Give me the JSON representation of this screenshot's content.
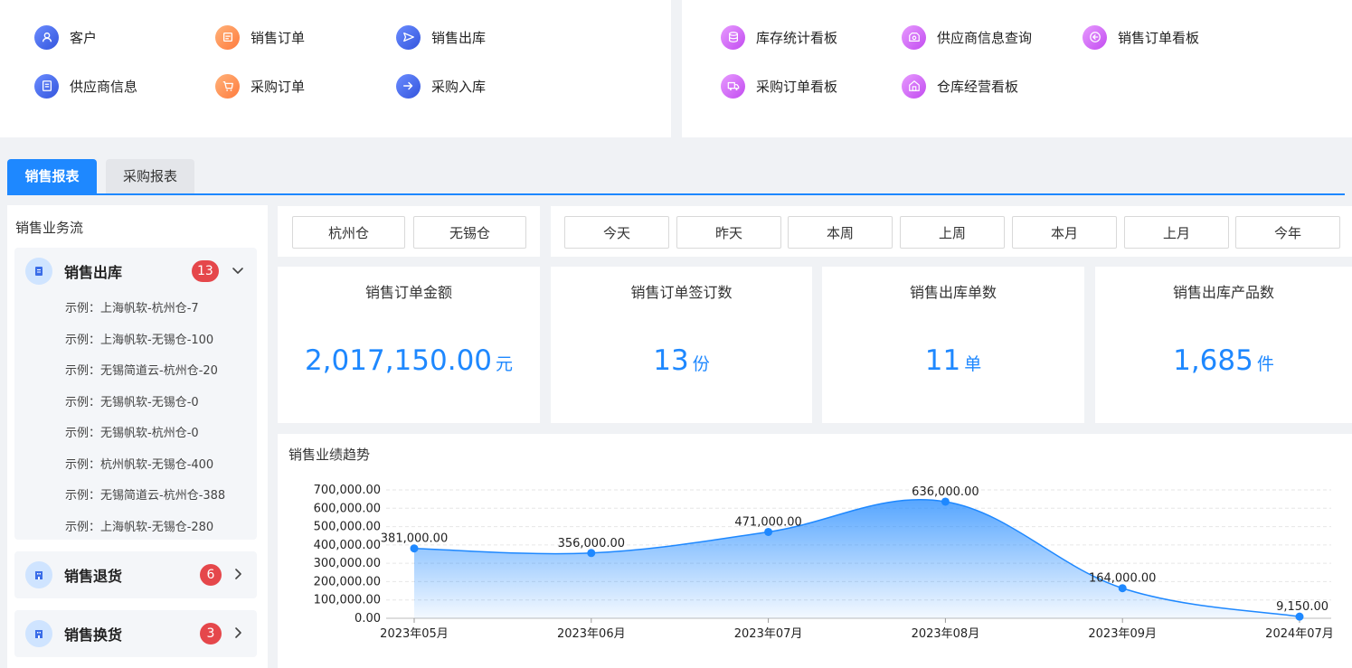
{
  "quick_left": [
    {
      "label": "客户",
      "icon": "customer-icon",
      "color": "blue"
    },
    {
      "label": "销售订单",
      "icon": "sales-order-icon",
      "color": "orange"
    },
    {
      "label": "销售出库",
      "icon": "send-icon",
      "color": "blue"
    },
    {
      "label": "供应商信息",
      "icon": "supplier-icon",
      "color": "blue"
    },
    {
      "label": "采购订单",
      "icon": "cart-icon",
      "color": "orange"
    },
    {
      "label": "采购入库",
      "icon": "arrow-in-icon",
      "color": "blue"
    }
  ],
  "quick_right": [
    {
      "label": "库存统计看板",
      "icon": "database-icon",
      "color": "purple"
    },
    {
      "label": "供应商信息查询",
      "icon": "supplier-search-icon",
      "color": "purple"
    },
    {
      "label": "销售订单看板",
      "icon": "arrow-back-icon",
      "color": "purple"
    },
    {
      "label": "采购订单看板",
      "icon": "truck-icon",
      "color": "purple"
    },
    {
      "label": "仓库经营看板",
      "icon": "warehouse-icon",
      "color": "purple"
    }
  ],
  "tabs": [
    {
      "label": "销售报表",
      "active": true
    },
    {
      "label": "采购报表",
      "active": false
    }
  ],
  "workflow": {
    "title": "销售业务流",
    "groups": [
      {
        "label": "销售出库",
        "badge": "13",
        "expanded": true,
        "items": [
          "示例：上海帆软-杭州仓-7",
          "示例：上海帆软-无锡仓-100",
          "示例：无锡简道云-杭州仓-20",
          "示例：无锡帆软-无锡仓-0",
          "示例：无锡帆软-杭州仓-0",
          "示例：杭州帆软-无锡仓-400",
          "示例：无锡简道云-杭州仓-388",
          "示例：上海帆软-无锡仓-280"
        ]
      },
      {
        "label": "销售退货",
        "badge": "6",
        "expanded": false,
        "items": []
      },
      {
        "label": "销售换货",
        "badge": "3",
        "expanded": false,
        "items": []
      }
    ]
  },
  "warehouses": [
    "杭州仓",
    "无锡仓"
  ],
  "periods": [
    "今天",
    "昨天",
    "本周",
    "上周",
    "本月",
    "上月",
    "今年"
  ],
  "kpis": [
    {
      "title": "销售订单金额",
      "value": "2,017,150.00",
      "unit": "元"
    },
    {
      "title": "销售订单签订数",
      "value": "13",
      "unit": "份"
    },
    {
      "title": "销售出库单数",
      "value": "11",
      "unit": "单"
    },
    {
      "title": "销售出库产品数",
      "value": "1,685",
      "unit": "件"
    }
  ],
  "chart_title": "销售业绩趋势",
  "colors": {
    "accent": "#1e88ff",
    "badge": "#e5474b"
  },
  "chart_data": {
    "type": "area",
    "title": "销售业绩趋势",
    "categories": [
      "2023年05月",
      "2023年06月",
      "2023年07月",
      "2023年08月",
      "2023年09月",
      "2024年07月"
    ],
    "values": [
      381000,
      356000,
      471000,
      636000,
      164000,
      9150
    ],
    "value_labels": [
      "381,000.00",
      "356,000.00",
      "471,000.00",
      "636,000.00",
      "164,000.00",
      "9,150.00"
    ],
    "yticks": [
      "0.00",
      "100,000.00",
      "200,000.00",
      "300,000.00",
      "400,000.00",
      "500,000.00",
      "600,000.00",
      "700,000.00"
    ],
    "ylim": [
      0,
      700000
    ],
    "grid": true,
    "smooth": true
  }
}
